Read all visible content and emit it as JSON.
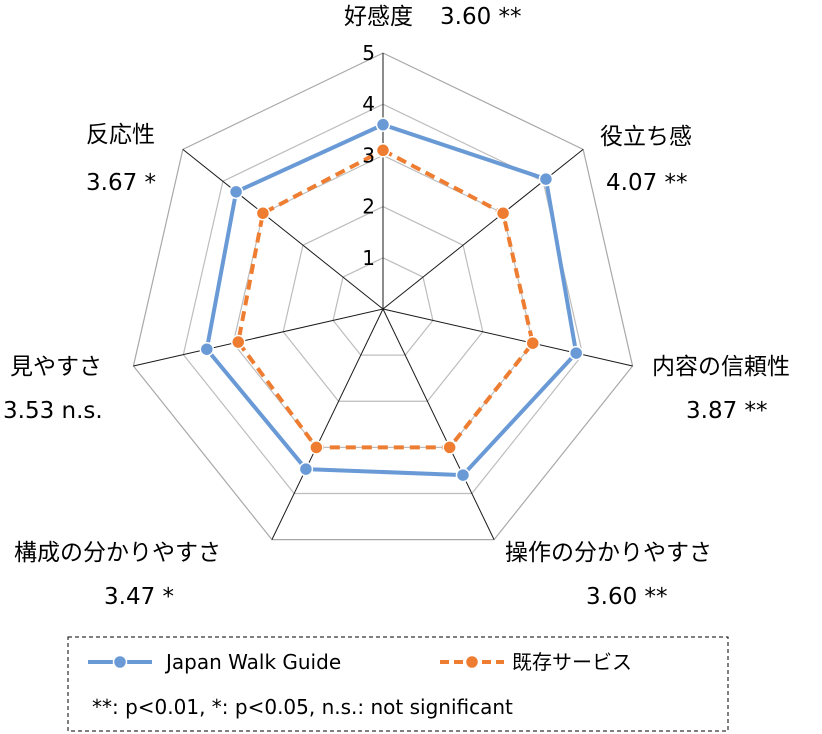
{
  "chart_data": {
    "type": "radar",
    "categories": [
      "好感度",
      "役立ち感",
      "内容の信頼性",
      "操作の分かりやすさ",
      "構成の分かりやすさ",
      "見やすさ",
      "反応性"
    ],
    "category_notes": [
      "3.60 **",
      "4.07 **",
      "3.87 **",
      "3.60 **",
      "3.47 *",
      "3.53 n.s.",
      "3.67 *"
    ],
    "rlim": [
      0,
      5
    ],
    "ticks": [
      1,
      2,
      3,
      4,
      5
    ],
    "series": [
      {
        "name": "Japan Walk Guide",
        "values": [
          3.6,
          4.07,
          3.87,
          3.6,
          3.47,
          3.53,
          3.67
        ],
        "color": "#6a9ad6",
        "style": "solid"
      },
      {
        "name": "既存サービス",
        "values": [
          3.1,
          3.0,
          3.0,
          3.0,
          3.0,
          2.9,
          3.0
        ],
        "color": "#ee7d31",
        "style": "dashed"
      }
    ],
    "legend_note": "**: p<0.01, *: p<0.05, n.s.: not significant",
    "legend_position": "bottom"
  }
}
